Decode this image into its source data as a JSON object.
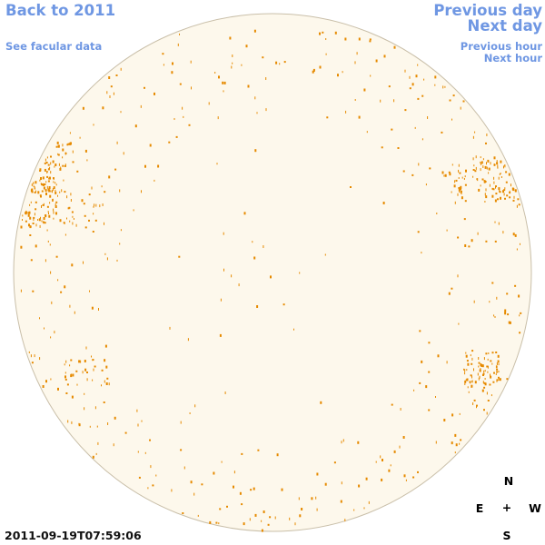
{
  "nav": {
    "back": "Back to 2011",
    "facular": "See facular data",
    "prev_day": "Previous day",
    "next_day": "Next day",
    "prev_hour": "Previous hour",
    "next_hour": "Next hour"
  },
  "timestamp": "2011-09-19T07:59:06",
  "compass": {
    "north": "N",
    "east": "E",
    "center": "+",
    "west": "W",
    "south": "S"
  },
  "colors": {
    "link": "#6f97e3",
    "disk_fill": "#fdf8ec",
    "disk_edge": "#c9bfa9",
    "faculae": "#e68a00"
  },
  "icons": {
    "sun_disk": "solar-disk-image",
    "faculae_marks": "facular-region-markers"
  }
}
